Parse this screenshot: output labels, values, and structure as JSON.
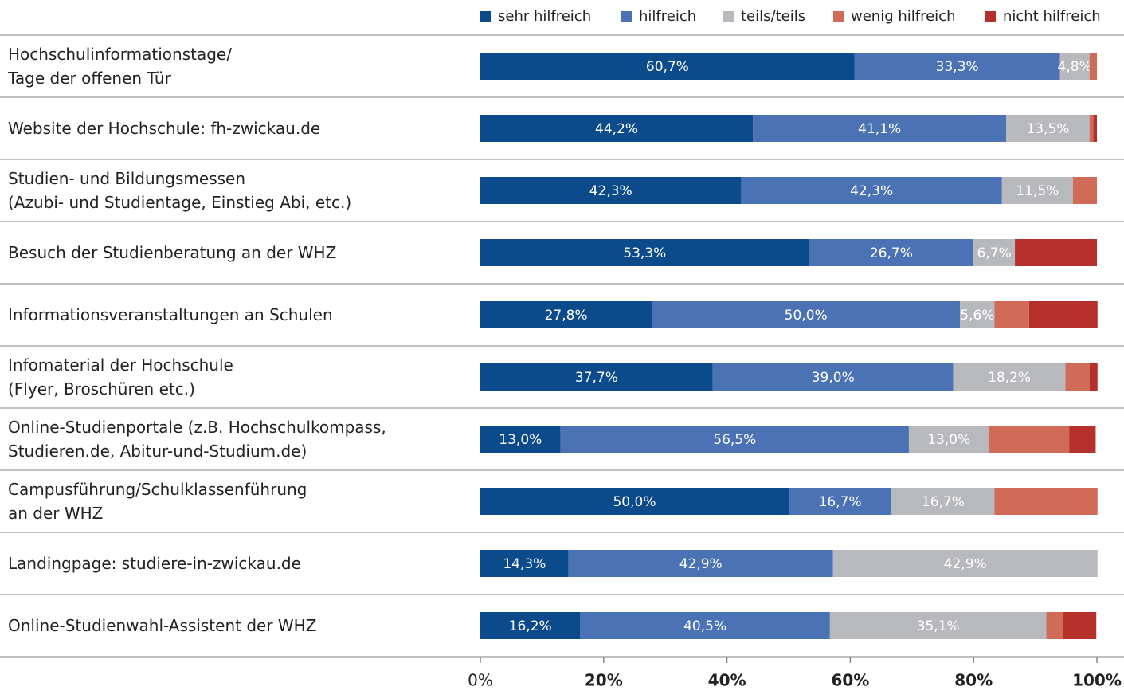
{
  "chart_data": {
    "type": "stacked-bar-horizontal",
    "categories": [
      "Hochschulinformationstage/\nTage der offenen Tür",
      "Website der Hochschule: fh-zwickau.de",
      "Studien- und Bildungsmessen\n(Azubi- und Studientage, Einstieg Abi, etc.)",
      "Besuch der Studienberatung an der WHZ",
      "Informationsveranstaltungen an Schulen",
      "Infomaterial der Hochschule\n(Flyer, Broschüren etc.)",
      "Online-Studienportale (z.B. Hochschulkompass,\nStudieren.de, Abitur-und-Studium.de)",
      "Campusführung/Schulklassenführung\nan der WHZ",
      "Landingpage: studiere-in-zwickau.de",
      "Online-Studienwahl-Assistent der WHZ"
    ],
    "series": [
      {
        "name": "sehr hilfreich",
        "color": "#0b4b8c",
        "values": [
          60.7,
          44.2,
          42.3,
          53.3,
          27.8,
          37.7,
          13.0,
          50.0,
          14.3,
          16.2
        ],
        "value_labels": [
          "60,7%",
          "44,2%",
          "42,3%",
          "53,3%",
          "27,8%",
          "37,7%",
          "13,0%",
          "50,0%",
          "14,3%",
          "16,2%"
        ]
      },
      {
        "name": "hilfreich",
        "color": "#4a72b4",
        "values": [
          33.3,
          41.1,
          42.3,
          26.7,
          50.0,
          39.0,
          56.5,
          16.7,
          42.9,
          40.5
        ],
        "value_labels": [
          "33,3%",
          "41,1%",
          "42,3%",
          "26,7%",
          "50,0%",
          "39,0%",
          "56,5%",
          "16,7%",
          "42,9%",
          "40,5%"
        ]
      },
      {
        "name": "teils/teils",
        "color": "#b8b9bc",
        "values": [
          4.8,
          13.5,
          11.5,
          6.7,
          5.6,
          18.2,
          13.0,
          16.7,
          42.9,
          35.1
        ],
        "value_labels": [
          "4,8%",
          "13,5%",
          "11,5%",
          "6,7%",
          "5,6%",
          "18,2%",
          "13,0%",
          "16,7%",
          "42,9%",
          "35,1%"
        ]
      },
      {
        "name": "wenig hilfreich",
        "color": "#d06b58",
        "values": [
          1.2,
          0.6,
          3.9,
          0,
          5.6,
          3.9,
          13.0,
          16.7,
          0,
          2.7
        ]
      },
      {
        "name": "nicht hilfreich",
        "color": "#b5302a",
        "values": [
          0,
          0.6,
          0,
          13.3,
          11.1,
          1.3,
          4.3,
          0,
          0,
          5.4
        ]
      }
    ],
    "xlim": [
      0,
      100
    ],
    "xticks": [
      {
        "value": 0,
        "label": "0%"
      },
      {
        "value": 20,
        "label": "20%"
      },
      {
        "value": 40,
        "label": "40%"
      },
      {
        "value": 60,
        "label": "60%"
      },
      {
        "value": 80,
        "label": "80%"
      },
      {
        "value": 100,
        "label": "100%"
      }
    ]
  }
}
